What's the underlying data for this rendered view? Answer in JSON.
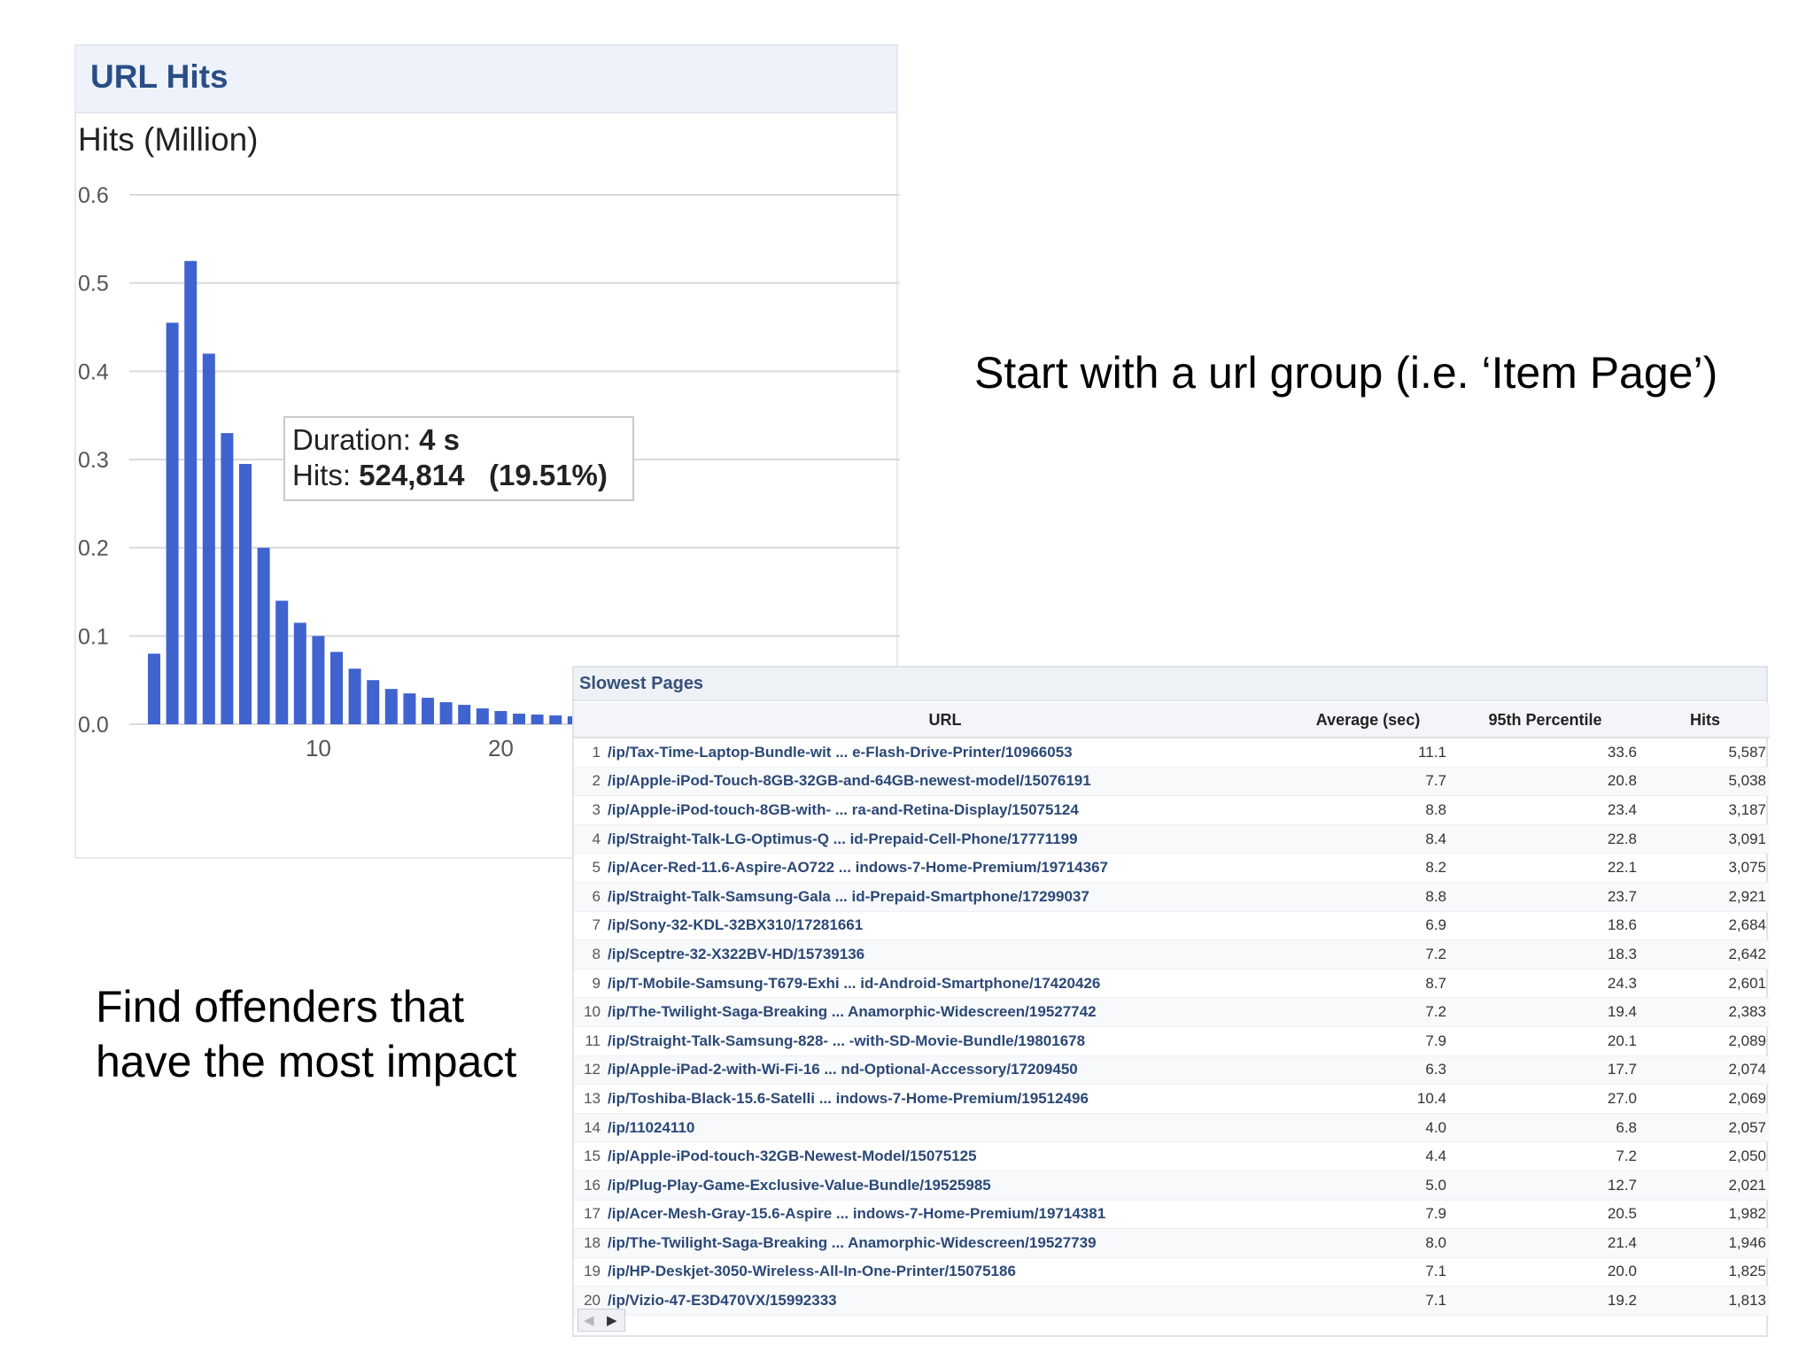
{
  "chart_data": {
    "type": "bar",
    "title": "URL Hits",
    "ylabel": "Hits (Million)",
    "ylim": [
      0,
      0.6
    ],
    "yticks": [
      "0.0",
      "0.1",
      "0.2",
      "0.3",
      "0.4",
      "0.5",
      "0.6"
    ],
    "xticks": [
      {
        "value": 10,
        "label": "10"
      },
      {
        "value": 20,
        "label": "20"
      }
    ],
    "grid": true,
    "x": [
      1,
      2,
      3,
      4,
      5,
      6,
      7,
      8,
      9,
      10,
      11,
      12,
      13,
      14,
      15,
      16,
      17,
      18,
      19,
      20,
      21,
      22,
      23,
      24,
      25,
      26,
      27,
      28,
      29,
      30,
      31,
      32
    ],
    "values": [
      0.08,
      0.455,
      0.525,
      0.42,
      0.33,
      0.295,
      0.2,
      0.14,
      0.115,
      0.1,
      0.082,
      0.063,
      0.05,
      0.04,
      0.035,
      0.03,
      0.025,
      0.022,
      0.018,
      0.015,
      0.012,
      0.011,
      0.01,
      0.009,
      0.008,
      0.007,
      0.006,
      0.005,
      0.005,
      0.004,
      0.004,
      0.003
    ],
    "color": "#3f63cf",
    "tooltip": {
      "duration_label": "Duration:",
      "duration_value": "4 s",
      "hits_label": "Hits:",
      "hits_value": "524,814",
      "hits_pct": "(19.51%)"
    }
  },
  "annotations": {
    "top_right": "Start with a url group (i.e. ‘Item Page’)",
    "bottom_left": "Find offenders that have the most impact"
  },
  "table": {
    "title": "Slowest Pages",
    "columns": [
      "URL",
      "Average (sec)",
      "95th Percentile",
      "Hits"
    ],
    "rows": [
      {
        "idx": "1",
        "url": "/ip/Tax-Time-Laptop-Bundle-wit ... e-Flash-Drive-Printer/10966053",
        "avg": "11.1",
        "p95": "33.6",
        "hits": "5,587"
      },
      {
        "idx": "2",
        "url": "/ip/Apple-iPod-Touch-8GB-32GB-and-64GB-newest-model/15076191",
        "avg": "7.7",
        "p95": "20.8",
        "hits": "5,038"
      },
      {
        "idx": "3",
        "url": "/ip/Apple-iPod-touch-8GB-with- ... ra-and-Retina-Display/15075124",
        "avg": "8.8",
        "p95": "23.4",
        "hits": "3,187"
      },
      {
        "idx": "4",
        "url": "/ip/Straight-Talk-LG-Optimus-Q ... id-Prepaid-Cell-Phone/17771199",
        "avg": "8.4",
        "p95": "22.8",
        "hits": "3,091"
      },
      {
        "idx": "5",
        "url": "/ip/Acer-Red-11.6-Aspire-AO722 ... indows-7-Home-Premium/19714367",
        "avg": "8.2",
        "p95": "22.1",
        "hits": "3,075"
      },
      {
        "idx": "6",
        "url": "/ip/Straight-Talk-Samsung-Gala ... id-Prepaid-Smartphone/17299037",
        "avg": "8.8",
        "p95": "23.7",
        "hits": "2,921"
      },
      {
        "idx": "7",
        "url": "/ip/Sony-32-KDL-32BX310/17281661",
        "avg": "6.9",
        "p95": "18.6",
        "hits": "2,684"
      },
      {
        "idx": "8",
        "url": "/ip/Sceptre-32-X322BV-HD/15739136",
        "avg": "7.2",
        "p95": "18.3",
        "hits": "2,642"
      },
      {
        "idx": "9",
        "url": "/ip/T-Mobile-Samsung-T679-Exhi ... id-Android-Smartphone/17420426",
        "avg": "8.7",
        "p95": "24.3",
        "hits": "2,601"
      },
      {
        "idx": "10",
        "url": "/ip/The-Twilight-Saga-Breaking ... Anamorphic-Widescreen/19527742",
        "avg": "7.2",
        "p95": "19.4",
        "hits": "2,383"
      },
      {
        "idx": "11",
        "url": "/ip/Straight-Talk-Samsung-828- ... -with-SD-Movie-Bundle/19801678",
        "avg": "7.9",
        "p95": "20.1",
        "hits": "2,089"
      },
      {
        "idx": "12",
        "url": "/ip/Apple-iPad-2-with-Wi-Fi-16 ... nd-Optional-Accessory/17209450",
        "avg": "6.3",
        "p95": "17.7",
        "hits": "2,074"
      },
      {
        "idx": "13",
        "url": "/ip/Toshiba-Black-15.6-Satelli ... indows-7-Home-Premium/19512496",
        "avg": "10.4",
        "p95": "27.0",
        "hits": "2,069"
      },
      {
        "idx": "14",
        "url": "/ip/11024110",
        "avg": "4.0",
        "p95": "6.8",
        "hits": "2,057"
      },
      {
        "idx": "15",
        "url": "/ip/Apple-iPod-touch-32GB-Newest-Model/15075125",
        "avg": "4.4",
        "p95": "7.2",
        "hits": "2,050"
      },
      {
        "idx": "16",
        "url": "/ip/Plug-Play-Game-Exclusive-Value-Bundle/19525985",
        "avg": "5.0",
        "p95": "12.7",
        "hits": "2,021"
      },
      {
        "idx": "17",
        "url": "/ip/Acer-Mesh-Gray-15.6-Aspire ... indows-7-Home-Premium/19714381",
        "avg": "7.9",
        "p95": "20.5",
        "hits": "1,982"
      },
      {
        "idx": "18",
        "url": "/ip/The-Twilight-Saga-Breaking ... Anamorphic-Widescreen/19527739",
        "avg": "8.0",
        "p95": "21.4",
        "hits": "1,946"
      },
      {
        "idx": "19",
        "url": "/ip/HP-Deskjet-3050-Wireless-All-In-One-Printer/15075186",
        "avg": "7.1",
        "p95": "20.0",
        "hits": "1,825"
      },
      {
        "idx": "20",
        "url": "/ip/Vizio-47-E3D470VX/15992333",
        "avg": "7.1",
        "p95": "19.2",
        "hits": "1,813"
      }
    ],
    "pager_prev_icon": "◀",
    "pager_next_icon": "▶"
  }
}
